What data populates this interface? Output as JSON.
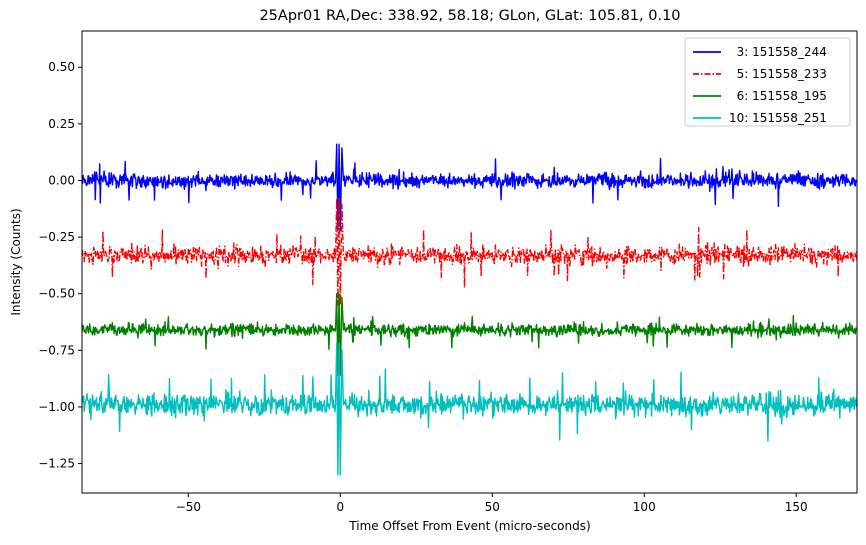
{
  "chart_data": {
    "type": "line",
    "title": "25Apr01 RA,Dec:  338.92,  58.18; GLon, GLat:  105.81,   0.10",
    "xlabel": "Time Offset From Event (micro-seconds)",
    "ylabel": "Intensity (Counts)",
    "xlim": [
      -85,
      170
    ],
    "ylim": [
      -1.38,
      0.66
    ],
    "xticks": [
      -50,
      0,
      50,
      100,
      150
    ],
    "xtick_labels": [
      "−50",
      "0",
      "50",
      "100",
      "150"
    ],
    "yticks": [
      0.5,
      0.25,
      0.0,
      -0.25,
      -0.5,
      -0.75,
      -1.0,
      -1.25
    ],
    "ytick_labels": [
      "0.50",
      "0.25",
      "0.00",
      "−0.25",
      "−0.50",
      "−0.75",
      "−1.00",
      "−1.25"
    ],
    "grid": false,
    "legend_position": "top-right",
    "series": [
      {
        "name": "  3: 151558_244",
        "color": "#0000ff",
        "style": "solid",
        "baseline": 0.0,
        "noise_amplitude": 0.055,
        "event_peak": 0.16,
        "event_dip": -0.22
      },
      {
        "name": "  5: 151558_233",
        "color": "#ff0000",
        "style": "dashdot",
        "baseline": -0.33,
        "noise_amplitude": 0.065,
        "event_peak": -0.08,
        "event_dip": -0.55
      },
      {
        "name": "  6: 151558_195",
        "color": "#008000",
        "style": "solid",
        "baseline": -0.66,
        "noise_amplitude": 0.045,
        "event_peak": -0.5,
        "event_dip": -0.86
      },
      {
        "name": "10: 151558_251",
        "color": "#00bfbf",
        "style": "solid",
        "baseline": -0.99,
        "noise_amplitude": 0.08,
        "event_peak": -0.72,
        "event_dip": -1.3
      }
    ]
  }
}
